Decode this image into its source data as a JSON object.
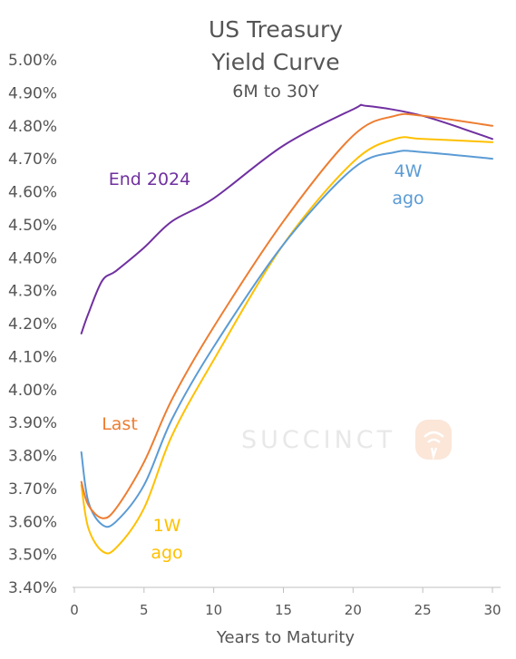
{
  "chart_data": {
    "type": "line",
    "title_line1": "US Treasury",
    "title_line2": "Yield Curve",
    "subtitle": "6M to 30Y",
    "xlabel": "Years to Maturity",
    "ylabel": "",
    "xlim": [
      0,
      31
    ],
    "ylim": [
      3.4,
      5.0
    ],
    "x_ticks": [
      0,
      5,
      10,
      15,
      20,
      25,
      30
    ],
    "y_ticks": [
      "3.40%",
      "3.50%",
      "3.60%",
      "3.70%",
      "3.80%",
      "3.90%",
      "4.00%",
      "4.10%",
      "4.20%",
      "4.30%",
      "4.40%",
      "4.50%",
      "4.60%",
      "4.70%",
      "4.80%",
      "4.90%",
      "5.00%"
    ],
    "grid": false,
    "watermark": "SUCCINCT",
    "series": [
      {
        "name": "End 2024",
        "label_lines": [
          "End 2024"
        ],
        "color": "#7030a0",
        "points": [
          [
            0.5,
            4.17
          ],
          [
            1,
            4.23
          ],
          [
            2,
            4.33
          ],
          [
            3,
            4.36
          ],
          [
            5,
            4.43
          ],
          [
            7,
            4.51
          ],
          [
            10,
            4.58
          ],
          [
            15,
            4.74
          ],
          [
            20,
            4.85
          ],
          [
            21,
            4.86
          ],
          [
            25,
            4.83
          ],
          [
            30,
            4.76
          ]
        ]
      },
      {
        "name": "Last",
        "label_lines": [
          "Last"
        ],
        "color": "#ed7d31",
        "points": [
          [
            0.5,
            3.72
          ],
          [
            1,
            3.65
          ],
          [
            2,
            3.61
          ],
          [
            3,
            3.64
          ],
          [
            5,
            3.78
          ],
          [
            7,
            3.97
          ],
          [
            10,
            4.19
          ],
          [
            15,
            4.51
          ],
          [
            20,
            4.77
          ],
          [
            23,
            4.83
          ],
          [
            25,
            4.83
          ],
          [
            30,
            4.8
          ]
        ]
      },
      {
        "name": "1W ago",
        "label_lines": [
          "1W",
          "ago"
        ],
        "color": "#ffc000",
        "points": [
          [
            0.5,
            3.71
          ],
          [
            1,
            3.58
          ],
          [
            2,
            3.51
          ],
          [
            3,
            3.52
          ],
          [
            5,
            3.64
          ],
          [
            7,
            3.86
          ],
          [
            10,
            4.09
          ],
          [
            15,
            4.44
          ],
          [
            20,
            4.69
          ],
          [
            23,
            4.76
          ],
          [
            25,
            4.76
          ],
          [
            30,
            4.75
          ]
        ]
      },
      {
        "name": "4W ago",
        "label_lines": [
          "4W",
          "ago"
        ],
        "color": "#5b9bd5",
        "points": [
          [
            0.5,
            3.81
          ],
          [
            1,
            3.66
          ],
          [
            2,
            3.59
          ],
          [
            3,
            3.6
          ],
          [
            5,
            3.71
          ],
          [
            7,
            3.91
          ],
          [
            10,
            4.13
          ],
          [
            15,
            4.44
          ],
          [
            20,
            4.67
          ],
          [
            23,
            4.72
          ],
          [
            25,
            4.72
          ],
          [
            30,
            4.7
          ]
        ]
      }
    ]
  }
}
